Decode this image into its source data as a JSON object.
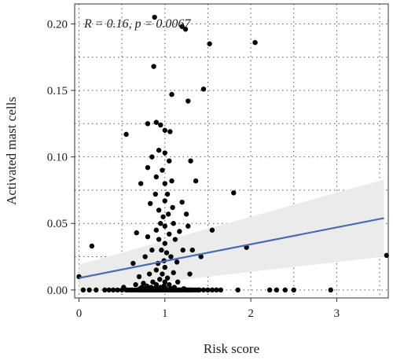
{
  "chart_data": {
    "type": "scatter",
    "title": "",
    "xlabel": "Risk score",
    "ylabel": "Activated mast cells",
    "xlim": [
      -0.05,
      3.6
    ],
    "ylim": [
      -0.006,
      0.215
    ],
    "xticks": [
      0,
      1,
      2,
      3
    ],
    "yticks": [
      0.0,
      0.05,
      0.1,
      0.15,
      0.2
    ],
    "xtick_labels": [
      "0",
      "1",
      "2",
      "3"
    ],
    "ytick_labels": [
      "0.00",
      "0.05",
      "0.10",
      "0.15",
      "0.20"
    ],
    "grid": "dotted, major and minor",
    "annotation": "R = 0.16, p = 0.0067",
    "colors": {
      "points": "#000000",
      "line": "#4a6bb0",
      "band": "#ebebeb",
      "grid": "#555555"
    },
    "regression": {
      "x": [
        0.0,
        3.55
      ],
      "y": [
        0.009,
        0.054
      ],
      "ci_lower": [
        -0.001,
        0.025
      ],
      "ci_upper": [
        0.019,
        0.083
      ]
    },
    "points": [
      [
        0.0,
        0.01
      ],
      [
        0.05,
        0.0
      ],
      [
        0.12,
        0.0
      ],
      [
        0.15,
        0.033
      ],
      [
        0.2,
        0.0
      ],
      [
        0.3,
        0.0
      ],
      [
        0.35,
        0.0
      ],
      [
        0.4,
        0.0
      ],
      [
        0.45,
        0.0
      ],
      [
        0.5,
        0.0
      ],
      [
        0.52,
        0.002
      ],
      [
        0.55,
        0.0
      ],
      [
        0.55,
        0.117
      ],
      [
        0.57,
        0.0
      ],
      [
        0.6,
        0.0
      ],
      [
        0.62,
        0.0
      ],
      [
        0.63,
        0.02
      ],
      [
        0.65,
        0.0
      ],
      [
        0.66,
        0.004
      ],
      [
        0.67,
        0.043
      ],
      [
        0.68,
        0.0
      ],
      [
        0.7,
        0.0
      ],
      [
        0.7,
        0.01
      ],
      [
        0.71,
        0.001
      ],
      [
        0.72,
        0.0
      ],
      [
        0.72,
        0.08
      ],
      [
        0.73,
        0.002
      ],
      [
        0.74,
        0.0
      ],
      [
        0.75,
        0.0
      ],
      [
        0.75,
        0.005
      ],
      [
        0.76,
        0.001
      ],
      [
        0.77,
        0.025
      ],
      [
        0.77,
        0.0
      ],
      [
        0.78,
        0.0
      ],
      [
        0.79,
        0.003
      ],
      [
        0.8,
        0.0
      ],
      [
        0.8,
        0.125
      ],
      [
        0.8,
        0.092
      ],
      [
        0.8,
        0.04
      ],
      [
        0.81,
        0.001
      ],
      [
        0.82,
        0.0
      ],
      [
        0.82,
        0.012
      ],
      [
        0.83,
        0.0
      ],
      [
        0.83,
        0.065
      ],
      [
        0.84,
        0.002
      ],
      [
        0.85,
        0.0
      ],
      [
        0.85,
        0.03
      ],
      [
        0.85,
        0.1
      ],
      [
        0.86,
        0.0
      ],
      [
        0.86,
        0.006
      ],
      [
        0.87,
        0.168
      ],
      [
        0.87,
        0.001
      ],
      [
        0.88,
        0.0
      ],
      [
        0.88,
        0.205
      ],
      [
        0.89,
        0.072
      ],
      [
        0.9,
        0.0
      ],
      [
        0.9,
        0.126
      ],
      [
        0.9,
        0.085
      ],
      [
        0.9,
        0.045
      ],
      [
        0.9,
        0.015
      ],
      [
        0.9,
        0.004
      ],
      [
        0.91,
        0.001
      ],
      [
        0.92,
        0.0
      ],
      [
        0.92,
        0.02
      ],
      [
        0.93,
        0.105
      ],
      [
        0.93,
        0.06
      ],
      [
        0.93,
        0.038
      ],
      [
        0.94,
        0.0
      ],
      [
        0.94,
        0.008
      ],
      [
        0.95,
        0.124
      ],
      [
        0.95,
        0.002
      ],
      [
        0.95,
        0.05
      ],
      [
        0.96,
        0.0
      ],
      [
        0.96,
        0.03
      ],
      [
        0.97,
        0.012
      ],
      [
        0.97,
        0.09
      ],
      [
        0.98,
        0.0
      ],
      [
        0.98,
        0.055
      ],
      [
        0.99,
        0.003
      ],
      [
        0.99,
        0.022
      ],
      [
        1.0,
        0.0
      ],
      [
        1.0,
        0.12
      ],
      [
        1.0,
        0.103
      ],
      [
        1.0,
        0.08
      ],
      [
        1.0,
        0.067
      ],
      [
        1.0,
        0.048
      ],
      [
        1.0,
        0.035
      ],
      [
        1.0,
        0.017
      ],
      [
        1.0,
        0.006
      ],
      [
        1.01,
        0.001
      ],
      [
        1.02,
        0.0
      ],
      [
        1.02,
        0.028
      ],
      [
        1.03,
        0.009
      ],
      [
        1.03,
        0.072
      ],
      [
        1.04,
        0.0
      ],
      [
        1.04,
        0.057
      ],
      [
        1.05,
        0.097
      ],
      [
        1.05,
        0.042
      ],
      [
        1.05,
        0.004
      ],
      [
        1.06,
        0.0
      ],
      [
        1.06,
        0.119
      ],
      [
        1.07,
        0.001
      ],
      [
        1.07,
        0.025
      ],
      [
        1.08,
        0.0
      ],
      [
        1.08,
        0.082
      ],
      [
        1.08,
        0.147
      ],
      [
        1.09,
        0.062
      ],
      [
        1.1,
        0.0
      ],
      [
        1.1,
        0.013
      ],
      [
        1.1,
        0.05
      ],
      [
        1.11,
        0.002
      ],
      [
        1.12,
        0.0
      ],
      [
        1.12,
        0.038
      ],
      [
        1.13,
        0.0
      ],
      [
        1.14,
        0.021
      ],
      [
        1.15,
        0.0
      ],
      [
        1.15,
        0.006
      ],
      [
        1.16,
        0.0
      ],
      [
        1.17,
        0.044
      ],
      [
        1.18,
        0.0
      ],
      [
        1.2,
        0.0
      ],
      [
        1.2,
        0.198
      ],
      [
        1.2,
        0.066
      ],
      [
        1.21,
        0.03
      ],
      [
        1.22,
        0.001
      ],
      [
        1.23,
        0.0
      ],
      [
        1.24,
        0.196
      ],
      [
        1.25,
        0.0
      ],
      [
        1.25,
        0.057
      ],
      [
        1.26,
        0.0
      ],
      [
        1.27,
        0.142
      ],
      [
        1.27,
        0.048
      ],
      [
        1.28,
        0.0
      ],
      [
        1.29,
        0.012
      ],
      [
        1.3,
        0.0
      ],
      [
        1.3,
        0.097
      ],
      [
        1.32,
        0.0
      ],
      [
        1.32,
        0.03
      ],
      [
        1.35,
        0.0
      ],
      [
        1.36,
        0.082
      ],
      [
        1.38,
        0.0
      ],
      [
        1.4,
        0.0
      ],
      [
        1.42,
        0.025
      ],
      [
        1.45,
        0.151
      ],
      [
        1.45,
        0.0
      ],
      [
        1.5,
        0.0
      ],
      [
        1.52,
        0.185
      ],
      [
        1.55,
        0.0
      ],
      [
        1.55,
        0.045
      ],
      [
        1.6,
        0.0
      ],
      [
        1.65,
        0.0
      ],
      [
        1.8,
        0.073
      ],
      [
        1.85,
        0.0
      ],
      [
        1.95,
        0.032
      ],
      [
        2.05,
        0.186
      ],
      [
        2.22,
        0.0
      ],
      [
        2.3,
        0.0
      ],
      [
        2.4,
        0.0
      ],
      [
        2.5,
        0.0
      ],
      [
        2.93,
        0.0
      ],
      [
        3.58,
        0.026
      ]
    ]
  }
}
